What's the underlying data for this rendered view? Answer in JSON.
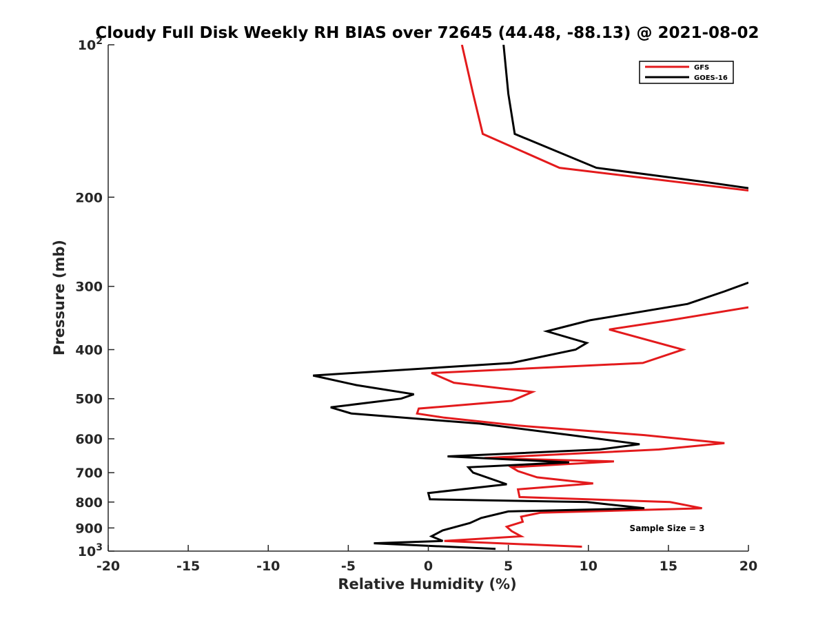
{
  "chart_data": {
    "type": "line",
    "title": "Cloudy Full Disk Weekly RH BIAS over 72645 (44.48, -88.13) @ 2021-08-02",
    "xlabel": "Relative Humidity (%)",
    "ylabel": "Pressure (mb)",
    "xlim": [
      -20,
      20
    ],
    "ylim": [
      100,
      1000
    ],
    "y_scale": "log",
    "y_reversed": true,
    "grid": false,
    "legend_position": "top-right",
    "x_ticks": [
      -20,
      -15,
      -10,
      -5,
      0,
      5,
      10,
      15,
      20
    ],
    "x_tick_labels": [
      "-20",
      "-15",
      "-10",
      "-5",
      "0",
      "5",
      "10",
      "15",
      "20"
    ],
    "y_ticks": [
      100,
      200,
      300,
      400,
      500,
      600,
      700,
      800,
      900,
      1000
    ],
    "y_tick_labels": [
      {
        "base": "10",
        "exp": "2"
      },
      {
        "base": "200",
        "exp": ""
      },
      {
        "base": "300",
        "exp": ""
      },
      {
        "base": "400",
        "exp": ""
      },
      {
        "base": "500",
        "exp": ""
      },
      {
        "base": "600",
        "exp": ""
      },
      {
        "base": "700",
        "exp": ""
      },
      {
        "base": "800",
        "exp": ""
      },
      {
        "base": "900",
        "exp": ""
      },
      {
        "base": "10",
        "exp": "3"
      }
    ],
    "annotation": "Sample Size = 3",
    "series": [
      {
        "name": "GFS",
        "color": "#e31a1c",
        "points": [
          [
            2.1,
            100
          ],
          [
            2.8,
            125
          ],
          [
            3.4,
            150
          ],
          [
            8.2,
            175
          ],
          [
            20.0,
            194
          ],
          [
            null,
            null
          ],
          [
            20.0,
            330
          ],
          [
            15.1,
            350
          ],
          [
            11.3,
            365
          ],
          [
            15.9,
            400
          ],
          [
            13.4,
            425
          ],
          [
            0.2,
            445
          ],
          [
            1.6,
            465
          ],
          [
            6.5,
            485
          ],
          [
            5.2,
            505
          ],
          [
            -0.6,
            523
          ],
          [
            -0.7,
            535
          ],
          [
            1.0,
            545
          ],
          [
            5.6,
            565
          ],
          [
            13.5,
            590
          ],
          [
            18.5,
            612
          ],
          [
            14.4,
            630
          ],
          [
            3.5,
            655
          ],
          [
            11.6,
            665
          ],
          [
            5.2,
            683
          ],
          [
            5.6,
            695
          ],
          [
            6.8,
            715
          ],
          [
            10.3,
            735
          ],
          [
            5.6,
            755
          ],
          [
            5.7,
            782
          ],
          [
            15.1,
            800
          ],
          [
            17.1,
            823
          ],
          [
            7.0,
            840
          ],
          [
            5.8,
            855
          ],
          [
            5.9,
            875
          ],
          [
            4.9,
            895
          ],
          [
            5.2,
            913
          ],
          [
            5.8,
            935
          ],
          [
            1.0,
            955
          ],
          [
            9.6,
            980
          ]
        ]
      },
      {
        "name": "GOES-16",
        "color": "#000000",
        "points": [
          [
            4.7,
            100
          ],
          [
            5.0,
            125
          ],
          [
            5.4,
            150
          ],
          [
            10.5,
            175
          ],
          [
            17.5,
            187
          ],
          [
            20.0,
            192
          ],
          [
            null,
            null
          ],
          [
            20.0,
            295
          ],
          [
            18.5,
            307
          ],
          [
            16.2,
            325
          ],
          [
            10.1,
            350
          ],
          [
            7.4,
            368
          ],
          [
            9.9,
            388
          ],
          [
            9.2,
            400
          ],
          [
            5.2,
            425
          ],
          [
            -7.2,
            450
          ],
          [
            -4.5,
            470
          ],
          [
            -0.9,
            490
          ],
          [
            -1.7,
            500
          ],
          [
            -6.1,
            520
          ],
          [
            -4.8,
            535
          ],
          [
            3.2,
            560
          ],
          [
            8.9,
            590
          ],
          [
            13.2,
            615
          ],
          [
            10.7,
            630
          ],
          [
            1.2,
            650
          ],
          [
            8.8,
            668
          ],
          [
            2.5,
            683
          ],
          [
            2.8,
            700
          ],
          [
            4.9,
            738
          ],
          [
            0.0,
            768
          ],
          [
            0.1,
            790
          ],
          [
            9.9,
            800
          ],
          [
            13.5,
            823
          ],
          [
            5.0,
            835
          ],
          [
            3.3,
            860
          ],
          [
            2.6,
            880
          ],
          [
            0.9,
            910
          ],
          [
            0.2,
            935
          ],
          [
            0.9,
            955
          ],
          [
            -3.4,
            965
          ],
          [
            4.2,
            990
          ]
        ]
      }
    ]
  }
}
